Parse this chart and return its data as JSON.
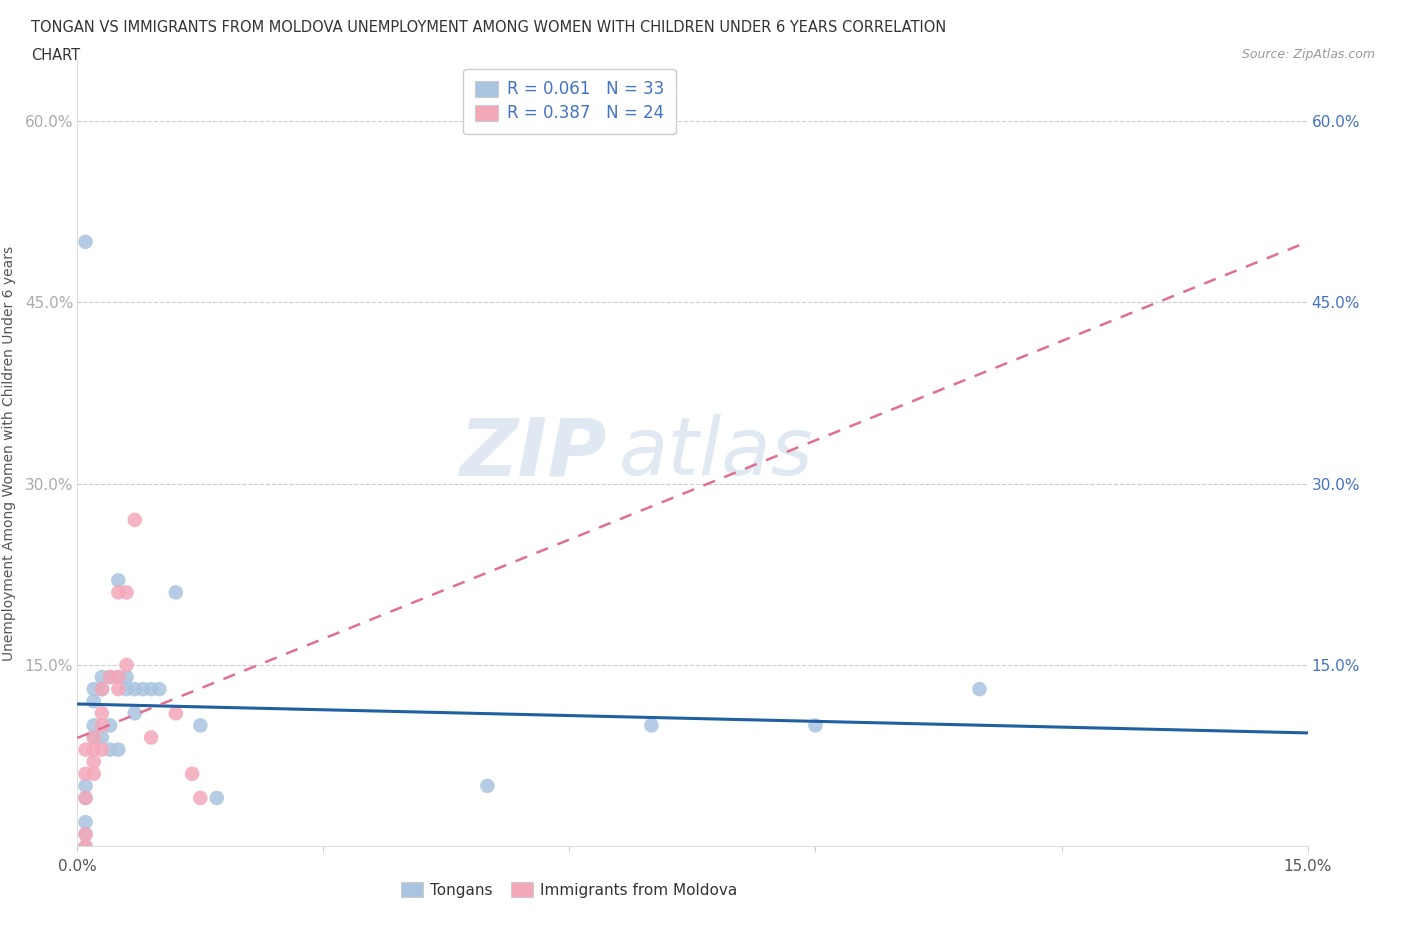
{
  "title_line1": "TONGAN VS IMMIGRANTS FROM MOLDOVA UNEMPLOYMENT AMONG WOMEN WITH CHILDREN UNDER 6 YEARS CORRELATION",
  "title_line2": "CHART",
  "source": "Source: ZipAtlas.com",
  "ylabel": "Unemployment Among Women with Children Under 6 years",
  "xlim": [
    0.0,
    0.15
  ],
  "ylim": [
    0.0,
    0.65
  ],
  "legend1_label": "R = 0.061   N = 33",
  "legend2_label": "R = 0.387   N = 24",
  "legend_bottom_label1": "Tongans",
  "legend_bottom_label2": "Immigrants from Moldova",
  "tongan_color": "#a8c4e0",
  "moldova_color": "#f4a7b9",
  "tongan_line_color": "#2060a0",
  "moldova_line_color": "#e07090",
  "tongan_x": [
    0.001,
    0.002,
    0.002,
    0.002,
    0.002,
    0.003,
    0.003,
    0.003,
    0.004,
    0.004,
    0.004,
    0.005,
    0.005,
    0.005,
    0.006,
    0.006,
    0.007,
    0.007,
    0.008,
    0.009,
    0.01,
    0.012,
    0.015,
    0.017,
    0.001,
    0.001,
    0.001,
    0.001,
    0.001,
    0.05,
    0.07,
    0.09,
    0.11
  ],
  "tongan_y": [
    0.5,
    0.13,
    0.12,
    0.1,
    0.09,
    0.14,
    0.13,
    0.09,
    0.14,
    0.1,
    0.08,
    0.22,
    0.14,
    0.08,
    0.14,
    0.13,
    0.13,
    0.11,
    0.13,
    0.13,
    0.13,
    0.21,
    0.1,
    0.04,
    0.05,
    0.04,
    0.02,
    0.01,
    0.0,
    0.05,
    0.1,
    0.1,
    0.13
  ],
  "moldova_x": [
    0.001,
    0.001,
    0.001,
    0.001,
    0.001,
    0.002,
    0.002,
    0.002,
    0.002,
    0.003,
    0.003,
    0.003,
    0.003,
    0.004,
    0.005,
    0.005,
    0.005,
    0.006,
    0.006,
    0.007,
    0.009,
    0.012,
    0.014,
    0.015
  ],
  "moldova_y": [
    0.0,
    0.01,
    0.04,
    0.06,
    0.08,
    0.06,
    0.07,
    0.08,
    0.09,
    0.08,
    0.1,
    0.11,
    0.13,
    0.14,
    0.13,
    0.14,
    0.21,
    0.15,
    0.21,
    0.27,
    0.09,
    0.11,
    0.06,
    0.04
  ]
}
